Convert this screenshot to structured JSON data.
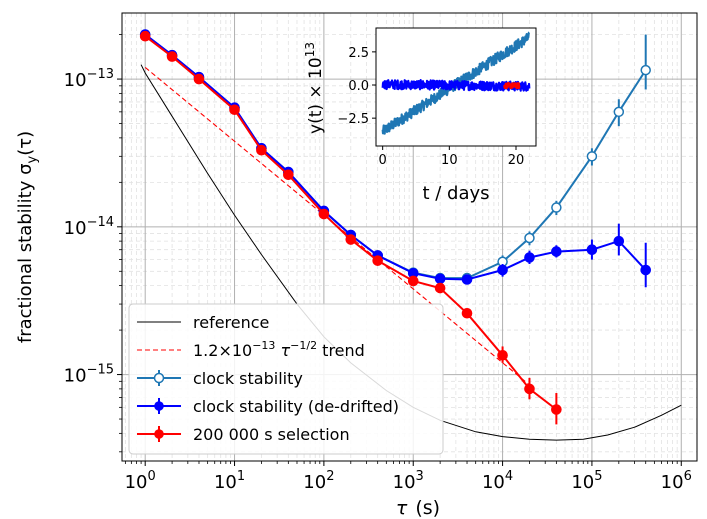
{
  "chart_data": [
    {
      "type": "line",
      "xscale": "log",
      "yscale": "log",
      "xlim": [
        0.55,
        1500000
      ],
      "ylim": [
        2.6e-16,
        2.8e-13
      ],
      "xlabel_sym": "τ",
      "xlabel_unit": "(s)",
      "ylabel_text": "fractional stability σ",
      "ylabel_sub": "y",
      "ylabel_arg": "(τ)",
      "grid": true,
      "legend_position": "lower-left",
      "x_ticks": [
        {
          "value": 1,
          "base": "10",
          "exp": "0"
        },
        {
          "value": 10,
          "base": "10",
          "exp": "1"
        },
        {
          "value": 100,
          "base": "10",
          "exp": "2"
        },
        {
          "value": 1000,
          "base": "10",
          "exp": "3"
        },
        {
          "value": 10000,
          "base": "10",
          "exp": "4"
        },
        {
          "value": 100000,
          "base": "10",
          "exp": "5"
        },
        {
          "value": 1000000,
          "base": "10",
          "exp": "6"
        }
      ],
      "y_ticks": [
        {
          "value": 1e-15,
          "base": "10",
          "exp": "−15"
        },
        {
          "value": 1e-14,
          "base": "10",
          "exp": "−14"
        },
        {
          "value": 1e-13,
          "base": "10",
          "exp": "−13"
        }
      ],
      "legend": [
        {
          "key": "reference",
          "label": "reference"
        },
        {
          "key": "trend",
          "label_pre": "1.2×10",
          "label_exp1": "−13",
          "label_mid": " τ",
          "label_exp2": "−1/2",
          "label_post": " trend"
        },
        {
          "key": "clock",
          "label": "clock stability"
        },
        {
          "key": "dedrift",
          "label": "clock stability (de-drifted)"
        },
        {
          "key": "selection",
          "label": "200 000 s selection"
        }
      ],
      "series": [
        {
          "key": "reference",
          "color": "#000000",
          "style": "line",
          "x": [
            0.9,
            1,
            2,
            5,
            10,
            20,
            50,
            100,
            200,
            500,
            1000,
            2000,
            5000,
            10000,
            20000,
            40000,
            80000,
            150000,
            300000,
            600000,
            1000000
          ],
          "y": [
            1.25e-13,
            1.1e-13,
            5.6e-14,
            2.3e-14,
            1.2e-14,
            6.5e-15,
            3e-15,
            1.8e-15,
            1.2e-15,
            7.8e-16,
            6e-16,
            4.9e-16,
            4.1e-16,
            3.8e-16,
            3.65e-16,
            3.6e-16,
            3.65e-16,
            3.9e-16,
            4.4e-16,
            5.3e-16,
            6.2e-16
          ]
        },
        {
          "key": "trend",
          "color": "#ff0000",
          "style": "dashed",
          "x": [
            1,
            20000
          ],
          "y": [
            1.2e-13,
            8.5e-16
          ]
        },
        {
          "key": "clock",
          "color": "#1f77b4",
          "style": "open-markers",
          "x": [
            1,
            2,
            4,
            10,
            20,
            40,
            100,
            200,
            400,
            1000,
            2000,
            4000,
            10000,
            20000,
            40000,
            100000,
            200000,
            400000
          ],
          "y": [
            2e-13,
            1.45e-13,
            1.03e-13,
            6.4e-14,
            3.4e-14,
            2.35e-14,
            1.28e-14,
            8.8e-15,
            6.4e-15,
            4.9e-15,
            4.5e-15,
            4.5e-15,
            5.8e-15,
            8.4e-15,
            1.35e-14,
            3e-14,
            6e-14,
            1.15e-13
          ],
          "err_lo": [
            null,
            null,
            null,
            null,
            null,
            null,
            null,
            null,
            null,
            null,
            null,
            null,
            5.2e-15,
            7.5e-15,
            1.2e-14,
            2.6e-14,
            4.8e-14,
            8.5e-14
          ],
          "err_hi": [
            null,
            null,
            null,
            null,
            null,
            null,
            null,
            null,
            null,
            null,
            null,
            null,
            6.4e-15,
            9.3e-15,
            1.5e-14,
            3.4e-14,
            7.3e-14,
            2e-13
          ]
        },
        {
          "key": "dedrift",
          "color": "#0000ff",
          "style": "filled-markers",
          "x": [
            1,
            2,
            4,
            10,
            20,
            40,
            100,
            200,
            400,
            1000,
            2000,
            4000,
            10000,
            20000,
            40000,
            100000,
            200000,
            400000
          ],
          "y": [
            2e-13,
            1.45e-13,
            1.03e-13,
            6.4e-14,
            3.4e-14,
            2.35e-14,
            1.28e-14,
            8.8e-15,
            6.4e-15,
            4.85e-15,
            4.45e-15,
            4.4e-15,
            5.1e-15,
            6.2e-15,
            6.8e-15,
            7e-15,
            8e-15,
            5.1e-15
          ],
          "err_lo": [
            null,
            null,
            null,
            null,
            null,
            null,
            null,
            null,
            null,
            null,
            null,
            null,
            4.6e-15,
            5.6e-15,
            6.2e-15,
            6e-15,
            6.4e-15,
            3.9e-15
          ],
          "err_hi": [
            null,
            null,
            null,
            null,
            null,
            null,
            null,
            null,
            null,
            null,
            null,
            null,
            5.6e-15,
            6.9e-15,
            7.5e-15,
            8.2e-15,
            1.05e-14,
            7.8e-15
          ]
        },
        {
          "key": "selection",
          "color": "#ff0000",
          "style": "filled-markers",
          "x": [
            1,
            2,
            4,
            10,
            20,
            40,
            100,
            200,
            400,
            1000,
            2000,
            4000,
            10000,
            20000,
            40000
          ],
          "y": [
            1.95e-13,
            1.42e-13,
            1e-13,
            6.2e-14,
            3.3e-14,
            2.25e-14,
            1.22e-14,
            8.2e-15,
            5.9e-15,
            4.3e-15,
            3.85e-15,
            2.6e-15,
            1.35e-15,
            8e-16,
            5.8e-16
          ],
          "err_lo": [
            null,
            null,
            null,
            null,
            null,
            null,
            null,
            null,
            null,
            null,
            null,
            null,
            1.2e-15,
            6.8e-16,
            4.6e-16
          ],
          "err_hi": [
            null,
            null,
            null,
            null,
            null,
            null,
            null,
            null,
            null,
            null,
            null,
            null,
            1.55e-15,
            9.5e-16,
            7.5e-16
          ]
        }
      ]
    },
    {
      "type": "line",
      "xlabel": "t / days",
      "ylabel_pre": "y(t) × 10",
      "ylabel_exp": "13",
      "xlim": [
        -1,
        23
      ],
      "ylim": [
        -4.6,
        4.3
      ],
      "x_ticks": [
        0,
        10,
        20
      ],
      "y_ticks": [
        {
          "value": 2.5,
          "label": "2.5"
        },
        {
          "value": 0,
          "label": "0.0"
        },
        {
          "value": -2.5,
          "label": "−2.5"
        }
      ],
      "series": [
        {
          "key": "raw",
          "color": "#1f77b4",
          "x": [
            0,
            22
          ],
          "y": [
            -3.5,
            3.6
          ],
          "noise": 0.4
        },
        {
          "key": "dedrifted",
          "color": "#0000ff",
          "x": [
            0,
            22
          ],
          "y": [
            0.05,
            -0.1
          ],
          "noise": 0.35
        },
        {
          "key": "selection",
          "color": "#ff0000",
          "x": [
            18.2,
            20.5
          ],
          "y": [
            -0.05,
            -0.05
          ],
          "noise": 0.2
        }
      ]
    }
  ]
}
